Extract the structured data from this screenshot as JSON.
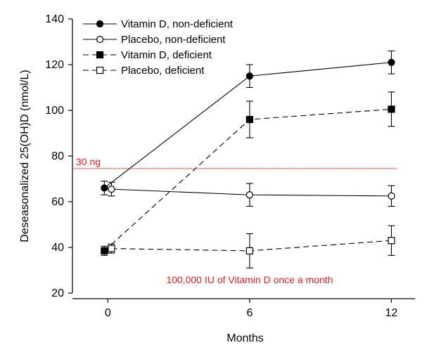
{
  "chart_data": {
    "type": "line",
    "title": "",
    "xlabel": "Months",
    "ylabel": "Deseasonalized 25(OH)D (nmol/L)",
    "xlim": [
      -1.5,
      13
    ],
    "ylim": [
      20,
      140
    ],
    "x_ticks": [
      0,
      6,
      12
    ],
    "y_ticks": [
      20,
      40,
      60,
      80,
      100,
      120,
      140
    ],
    "grid": false,
    "legend_position": "top-left",
    "series": [
      {
        "name": "Vitamin D, non-deficient",
        "marker": "circle",
        "filled": true,
        "line": "solid",
        "points": [
          {
            "x": -0.15,
            "y": 66,
            "err": 3
          },
          {
            "x": 6,
            "y": 115,
            "err": 5
          },
          {
            "x": 12,
            "y": 121,
            "err": 5
          }
        ]
      },
      {
        "name": "Placebo, non-deficient",
        "marker": "circle",
        "filled": false,
        "line": "solid",
        "points": [
          {
            "x": 0.15,
            "y": 65.5,
            "err": 3
          },
          {
            "x": 6,
            "y": 63,
            "err": 5
          },
          {
            "x": 12,
            "y": 62.5,
            "err": 4.5
          }
        ]
      },
      {
        "name": "Vitamin D, deficient",
        "marker": "square",
        "filled": true,
        "line": "dashed",
        "points": [
          {
            "x": -0.15,
            "y": 38.5,
            "err": 2
          },
          {
            "x": 6,
            "y": 96,
            "err": 8
          },
          {
            "x": 12,
            "y": 100.5,
            "err": 7.5
          }
        ]
      },
      {
        "name": "Placebo, deficient",
        "marker": "square",
        "filled": false,
        "line": "dashed",
        "points": [
          {
            "x": 0.15,
            "y": 39.5,
            "err": 2
          },
          {
            "x": 6,
            "y": 38.5,
            "err": 7.5
          },
          {
            "x": 12,
            "y": 43,
            "err": 6.5
          }
        ]
      }
    ],
    "reference_line": {
      "y": 74.5,
      "label": "30 ng",
      "color": "#e02020"
    },
    "annotation": {
      "text": "100,000 IU of Vitamin D once a month",
      "color": "#e02020"
    }
  }
}
